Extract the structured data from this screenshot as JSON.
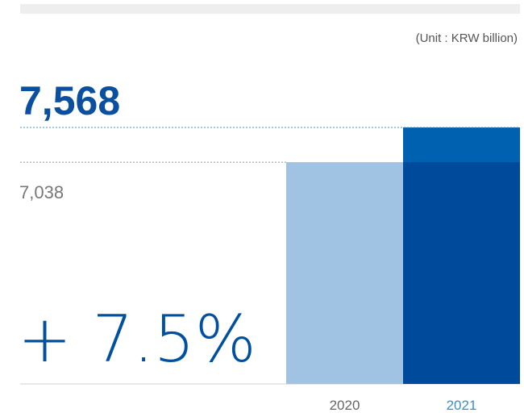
{
  "chart_data": {
    "type": "bar",
    "unit": "(Unit : KRW billion)",
    "annotation": "+ 7.5%",
    "categories": [
      "2020",
      "2021"
    ],
    "values": [
      7038,
      7568
    ],
    "value_labels": [
      "7,038",
      "7,568"
    ],
    "colors": [
      "#a0c3e4",
      "#004a9c"
    ],
    "increase_color": "#0061b0",
    "category_label_colors": [
      "#666666",
      "#3a8fc8"
    ],
    "ylim": [
      3650,
      8000
    ]
  }
}
